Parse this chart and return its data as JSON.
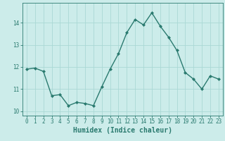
{
  "x": [
    0,
    1,
    2,
    3,
    4,
    5,
    6,
    7,
    8,
    9,
    10,
    11,
    12,
    13,
    14,
    15,
    16,
    17,
    18,
    19,
    20,
    21,
    22,
    23
  ],
  "y": [
    11.9,
    11.95,
    11.8,
    10.7,
    10.75,
    10.25,
    10.4,
    10.35,
    10.25,
    11.1,
    11.9,
    12.6,
    13.55,
    14.15,
    13.9,
    14.45,
    13.85,
    13.35,
    12.75,
    11.75,
    11.45,
    11.0,
    11.6,
    11.45
  ],
  "line_color": "#2a7a6f",
  "marker": "D",
  "marker_size": 2.0,
  "bg_color": "#ccecea",
  "grid_color": "#aad8d5",
  "axis_color": "#2a7a6f",
  "xlabel": "Humidex (Indice chaleur)",
  "ylim": [
    9.8,
    14.9
  ],
  "xlim": [
    -0.5,
    23.5
  ],
  "yticks": [
    10,
    11,
    12,
    13,
    14
  ],
  "xticks": [
    0,
    1,
    2,
    3,
    4,
    5,
    6,
    7,
    8,
    9,
    10,
    11,
    12,
    13,
    14,
    15,
    16,
    17,
    18,
    19,
    20,
    21,
    22,
    23
  ],
  "tick_fontsize": 5.5,
  "label_fontsize": 7.0,
  "linewidth": 1.0
}
